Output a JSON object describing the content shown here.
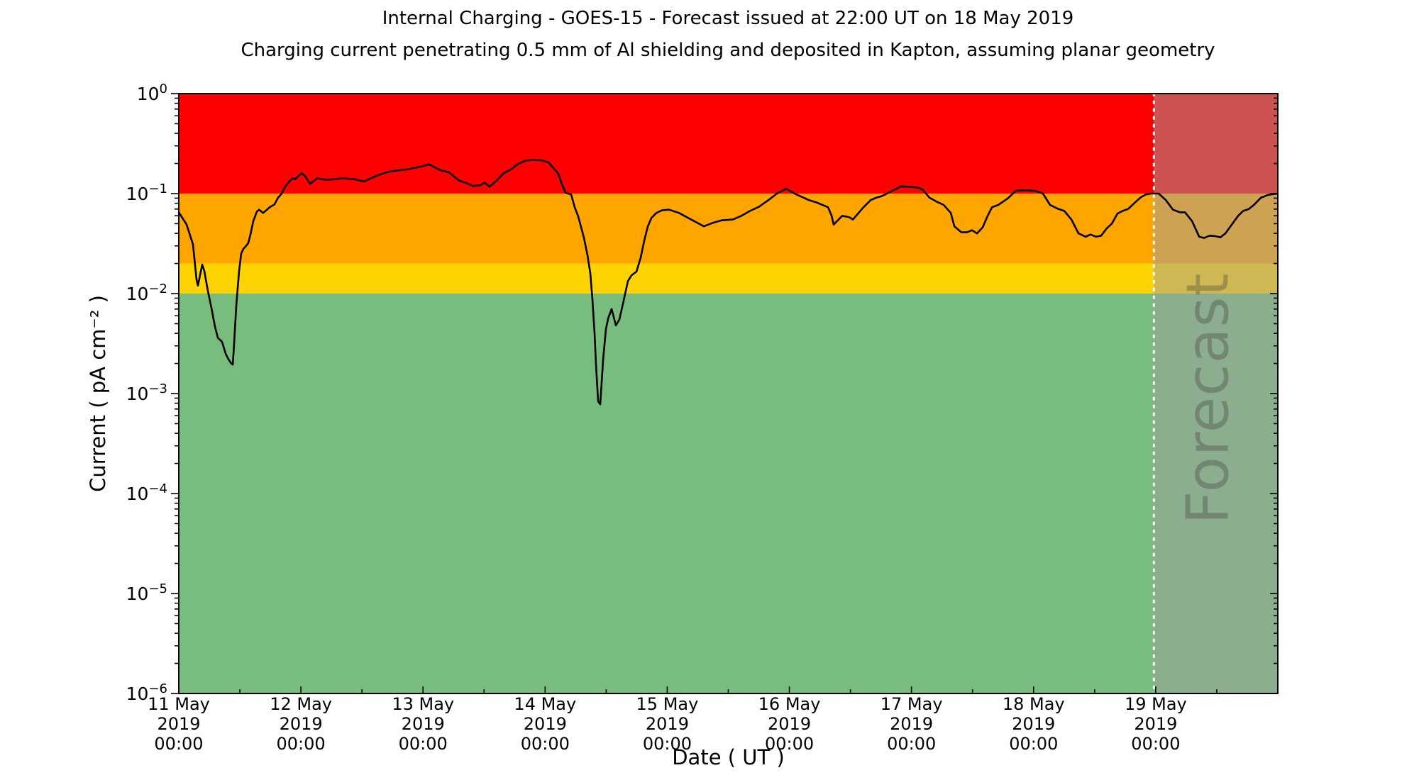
{
  "title": "Internal Charging - GOES-15 - Forecast issued at 22:00 UT on 18 May 2019",
  "subtitle": "Charging current penetrating 0.5 mm of Al shielding and deposited in Kapton, assuming planar geometry",
  "chart_data": {
    "type": "line",
    "xlabel": "Date ( UT )",
    "ylabel": "Current ( pA cm⁻² )",
    "grid": false,
    "x_axis": {
      "start": "11 May 2019 00:00",
      "end": "20 May 2019 00:00",
      "days_total": 9,
      "minor_tick_interval_days": 0.5,
      "major_tick_labels": [
        {
          "day": 0,
          "lines": [
            "11 May",
            "2019",
            "00:00"
          ]
        },
        {
          "day": 1,
          "lines": [
            "12 May",
            "2019",
            "00:00"
          ]
        },
        {
          "day": 2,
          "lines": [
            "13 May",
            "2019",
            "00:00"
          ]
        },
        {
          "day": 3,
          "lines": [
            "14 May",
            "2019",
            "00:00"
          ]
        },
        {
          "day": 4,
          "lines": [
            "15 May",
            "2019",
            "00:00"
          ]
        },
        {
          "day": 5,
          "lines": [
            "16 May",
            "2019",
            "00:00"
          ]
        },
        {
          "day": 6,
          "lines": [
            "17 May",
            "2019",
            "00:00"
          ]
        },
        {
          "day": 7,
          "lines": [
            "18 May",
            "2019",
            "00:00"
          ]
        },
        {
          "day": 8,
          "lines": [
            "19 May",
            "2019",
            "00:00"
          ]
        }
      ]
    },
    "y_axis": {
      "scale": "log",
      "min": 1e-06,
      "max": 1,
      "tick_exponents": [
        "0",
        "−1",
        "−2",
        "−3",
        "−4",
        "−5",
        "−6"
      ]
    },
    "threshold_bands": [
      {
        "name": "red-alert",
        "from": 0.1,
        "to": 1.0,
        "color": "#fe0000"
      },
      {
        "name": "orange-warning",
        "from": 0.02,
        "to": 0.1,
        "color": "#ffa500"
      },
      {
        "name": "gold-caution",
        "from": 0.01,
        "to": 0.02,
        "color": "#ffd300"
      },
      {
        "name": "green-quiet",
        "from": 1e-06,
        "to": 0.01,
        "color": "#79bd7e"
      }
    ],
    "forecast": {
      "label": "Forecast",
      "start_day": 7.985,
      "overlay_color": "rgba(160,160,160,0.52)",
      "divider_color": "#ffffff",
      "divider_style": "dotted"
    },
    "series": [
      {
        "name": "charging-current",
        "color": "#000000",
        "points_day_value": [
          [
            0,
            0.065
          ],
          [
            0.064,
            0.049
          ],
          [
            0.116,
            0.031
          ],
          [
            0.145,
            0.0138
          ],
          [
            0.157,
            0.012
          ],
          [
            0.192,
            0.0195
          ],
          [
            0.209,
            0.0168
          ],
          [
            0.238,
            0.0106
          ],
          [
            0.267,
            0.0072
          ],
          [
            0.296,
            0.0047
          ],
          [
            0.32,
            0.0036
          ],
          [
            0.354,
            0.0033
          ],
          [
            0.384,
            0.0025
          ],
          [
            0.407,
            0.0022
          ],
          [
            0.43,
            0.002
          ],
          [
            0.442,
            0.00195
          ],
          [
            0.453,
            0.0032
          ],
          [
            0.471,
            0.0077
          ],
          [
            0.494,
            0.0168
          ],
          [
            0.511,
            0.025
          ],
          [
            0.529,
            0.028
          ],
          [
            0.552,
            0.03
          ],
          [
            0.569,
            0.032
          ],
          [
            0.587,
            0.039
          ],
          [
            0.61,
            0.053
          ],
          [
            0.639,
            0.066
          ],
          [
            0.657,
            0.069
          ],
          [
            0.691,
            0.064
          ],
          [
            0.744,
            0.073
          ],
          [
            0.784,
            0.078
          ],
          [
            0.813,
            0.091
          ],
          [
            0.843,
            0.1
          ],
          [
            0.872,
            0.118
          ],
          [
            0.901,
            0.13
          ],
          [
            0.93,
            0.142
          ],
          [
            0.953,
            0.139
          ],
          [
            1.005,
            0.16
          ],
          [
            1.034,
            0.15
          ],
          [
            1.075,
            0.125
          ],
          [
            1.133,
            0.142
          ],
          [
            1.209,
            0.137
          ],
          [
            1.267,
            0.139
          ],
          [
            1.342,
            0.142
          ],
          [
            1.441,
            0.139
          ],
          [
            1.517,
            0.132
          ],
          [
            1.615,
            0.15
          ],
          [
            1.714,
            0.165
          ],
          [
            1.79,
            0.17
          ],
          [
            1.865,
            0.174
          ],
          [
            1.981,
            0.186
          ],
          [
            2.051,
            0.196
          ],
          [
            2.138,
            0.172
          ],
          [
            2.214,
            0.163
          ],
          [
            2.295,
            0.135
          ],
          [
            2.359,
            0.127
          ],
          [
            2.411,
            0.119
          ],
          [
            2.47,
            0.121
          ],
          [
            2.504,
            0.129
          ],
          [
            2.545,
            0.117
          ],
          [
            2.603,
            0.135
          ],
          [
            2.661,
            0.16
          ],
          [
            2.719,
            0.174
          ],
          [
            2.777,
            0.198
          ],
          [
            2.835,
            0.212
          ],
          [
            2.894,
            0.218
          ],
          [
            2.969,
            0.215
          ],
          [
            3.027,
            0.205
          ],
          [
            3.079,
            0.174
          ],
          [
            3.108,
            0.158
          ],
          [
            3.137,
            0.125
          ],
          [
            3.167,
            0.102
          ],
          [
            3.213,
            0.098
          ],
          [
            3.242,
            0.073
          ],
          [
            3.271,
            0.059
          ],
          [
            3.318,
            0.036
          ],
          [
            3.347,
            0.024
          ],
          [
            3.37,
            0.016
          ],
          [
            3.387,
            0.0089
          ],
          [
            3.405,
            0.004
          ],
          [
            3.417,
            0.0019
          ],
          [
            3.434,
            0.00084
          ],
          [
            3.451,
            0.00078
          ],
          [
            3.475,
            0.0022
          ],
          [
            3.498,
            0.0044
          ],
          [
            3.515,
            0.0056
          ],
          [
            3.544,
            0.007
          ],
          [
            3.562,
            0.0058
          ],
          [
            3.579,
            0.0048
          ],
          [
            3.608,
            0.0055
          ],
          [
            3.643,
            0.0085
          ],
          [
            3.678,
            0.0133
          ],
          [
            3.707,
            0.0152
          ],
          [
            3.748,
            0.0166
          ],
          [
            3.783,
            0.023
          ],
          [
            3.812,
            0.034
          ],
          [
            3.841,
            0.047
          ],
          [
            3.87,
            0.057
          ],
          [
            3.911,
            0.064
          ],
          [
            3.957,
            0.068
          ],
          [
            4.015,
            0.069
          ],
          [
            4.097,
            0.064
          ],
          [
            4.184,
            0.056
          ],
          [
            4.3,
            0.047
          ],
          [
            4.375,
            0.051
          ],
          [
            4.445,
            0.054
          ],
          [
            4.538,
            0.055
          ],
          [
            4.608,
            0.06
          ],
          [
            4.677,
            0.067
          ],
          [
            4.753,
            0.074
          ],
          [
            4.828,
            0.086
          ],
          [
            4.898,
            0.1
          ],
          [
            4.974,
            0.112
          ],
          [
            5.043,
            0.1
          ],
          [
            5.16,
            0.086
          ],
          [
            5.218,
            0.082
          ],
          [
            5.317,
            0.073
          ],
          [
            5.346,
            0.06
          ],
          [
            5.363,
            0.049
          ],
          [
            5.433,
            0.06
          ],
          [
            5.491,
            0.058
          ],
          [
            5.52,
            0.055
          ],
          [
            5.607,
            0.073
          ],
          [
            5.666,
            0.086
          ],
          [
            5.712,
            0.091
          ],
          [
            5.753,
            0.094
          ],
          [
            5.799,
            0.1
          ],
          [
            5.915,
            0.118
          ],
          [
            5.991,
            0.117
          ],
          [
            6.049,
            0.115
          ],
          [
            6.09,
            0.11
          ],
          [
            6.148,
            0.091
          ],
          [
            6.206,
            0.083
          ],
          [
            6.264,
            0.077
          ],
          [
            6.322,
            0.064
          ],
          [
            6.351,
            0.047
          ],
          [
            6.409,
            0.041
          ],
          [
            6.455,
            0.041
          ],
          [
            6.496,
            0.043
          ],
          [
            6.537,
            0.04
          ],
          [
            6.583,
            0.046
          ],
          [
            6.624,
            0.06
          ],
          [
            6.659,
            0.073
          ],
          [
            6.711,
            0.077
          ],
          [
            6.787,
            0.089
          ],
          [
            6.856,
            0.107
          ],
          [
            6.944,
            0.108
          ],
          [
            7.019,
            0.106
          ],
          [
            7.077,
            0.1
          ],
          [
            7.135,
            0.077
          ],
          [
            7.193,
            0.071
          ],
          [
            7.252,
            0.067
          ],
          [
            7.31,
            0.055
          ],
          [
            7.368,
            0.04
          ],
          [
            7.426,
            0.037
          ],
          [
            7.466,
            0.039
          ],
          [
            7.513,
            0.037
          ],
          [
            7.554,
            0.038
          ],
          [
            7.6,
            0.045
          ],
          [
            7.641,
            0.05
          ],
          [
            7.687,
            0.063
          ],
          [
            7.728,
            0.067
          ],
          [
            7.774,
            0.07
          ],
          [
            7.833,
            0.082
          ],
          [
            7.879,
            0.092
          ],
          [
            7.92,
            0.098
          ],
          [
            7.961,
            0.1
          ],
          [
            8.025,
            0.1
          ],
          [
            8.083,
            0.086
          ],
          [
            8.141,
            0.069
          ],
          [
            8.199,
            0.065
          ],
          [
            8.24,
            0.065
          ],
          [
            8.298,
            0.053
          ],
          [
            8.356,
            0.037
          ],
          [
            8.397,
            0.036
          ],
          [
            8.443,
            0.038
          ],
          [
            8.49,
            0.0375
          ],
          [
            8.53,
            0.0365
          ],
          [
            8.571,
            0.04
          ],
          [
            8.629,
            0.05
          ],
          [
            8.676,
            0.06
          ],
          [
            8.716,
            0.067
          ],
          [
            8.763,
            0.07
          ],
          [
            8.809,
            0.078
          ],
          [
            8.862,
            0.091
          ],
          [
            8.92,
            0.097
          ],
          [
            8.995,
            0.1
          ]
        ]
      }
    ]
  }
}
